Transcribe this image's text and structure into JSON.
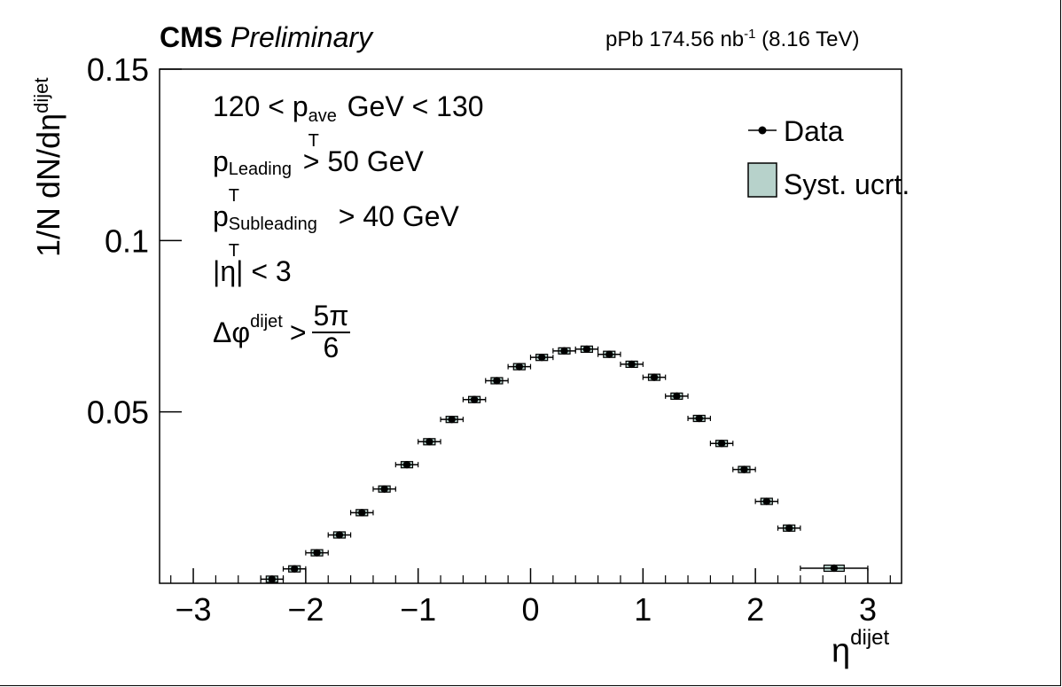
{
  "header": {
    "cms_bold": "CMS",
    "cms_italic": "Preliminary",
    "lumi_prefix": "pPb 174.56 nb",
    "lumi_exp": "-1",
    "lumi_suffix": "(8.16 TeV)"
  },
  "annotations": {
    "line1": {
      "pre": "120 < p",
      "sup": "ave",
      "sub": "T",
      "post": "GeV < 130"
    },
    "line2": {
      "pre": "p",
      "sup": "Leading",
      "sub": "T",
      "post": "> 50 GeV"
    },
    "line3": {
      "pre": "p",
      "sup": "Subleading",
      "sub": "T",
      "post": "> 40 GeV"
    },
    "line4": "|η| < 3",
    "line5": {
      "pre": "Δφ",
      "sup": "dijet",
      "post": ">",
      "num": "5π",
      "den": "6"
    }
  },
  "legend": {
    "data_label": "Data",
    "syst_label": "Syst. ucrt."
  },
  "colors": {
    "syst_fill": "#b7d2cb",
    "marker": "#000000"
  },
  "chart_data": {
    "type": "scatter",
    "xlabel": {
      "base": "η",
      "sup": "dijet"
    },
    "ylabel": {
      "base": "1/N dN/dη",
      "sup": "dijet"
    },
    "xlim": [
      -3.3,
      3.3
    ],
    "ylim": [
      0,
      0.15
    ],
    "x_ticks": [
      -3,
      -2,
      -1,
      0,
      1,
      2,
      3
    ],
    "x_tick_labels": [
      "−3",
      "−2",
      "−1",
      "0",
      "1",
      "2",
      "3"
    ],
    "y_ticks": [
      0.05,
      0.1,
      0.15
    ],
    "y_tick_labels": [
      "0.05",
      "0.1",
      "0.15"
    ],
    "grid": false,
    "legend_position": "top-right",
    "series": [
      {
        "name": "Data",
        "points": [
          {
            "x": -2.3,
            "y": 0.0012,
            "xerr": 0.1,
            "yerr": 0.0004
          },
          {
            "x": -2.1,
            "y": 0.0042,
            "xerr": 0.1,
            "yerr": 0.0005
          },
          {
            "x": -1.9,
            "y": 0.0089,
            "xerr": 0.1,
            "yerr": 0.0006
          },
          {
            "x": -1.7,
            "y": 0.0141,
            "xerr": 0.1,
            "yerr": 0.0007
          },
          {
            "x": -1.5,
            "y": 0.0206,
            "xerr": 0.1,
            "yerr": 0.0007
          },
          {
            "x": -1.3,
            "y": 0.0275,
            "xerr": 0.1,
            "yerr": 0.0008
          },
          {
            "x": -1.1,
            "y": 0.0346,
            "xerr": 0.1,
            "yerr": 0.0008
          },
          {
            "x": -0.9,
            "y": 0.0413,
            "xerr": 0.1,
            "yerr": 0.0009
          },
          {
            "x": -0.7,
            "y": 0.0478,
            "xerr": 0.1,
            "yerr": 0.0009
          },
          {
            "x": -0.5,
            "y": 0.0536,
            "xerr": 0.1,
            "yerr": 0.0009
          },
          {
            "x": -0.3,
            "y": 0.0591,
            "xerr": 0.1,
            "yerr": 0.0009
          },
          {
            "x": -0.1,
            "y": 0.0632,
            "xerr": 0.1,
            "yerr": 0.0009
          },
          {
            "x": 0.1,
            "y": 0.0659,
            "xerr": 0.1,
            "yerr": 0.0009
          },
          {
            "x": 0.3,
            "y": 0.0678,
            "xerr": 0.1,
            "yerr": 0.0009
          },
          {
            "x": 0.5,
            "y": 0.0683,
            "xerr": 0.1,
            "yerr": 0.0009
          },
          {
            "x": 0.7,
            "y": 0.0668,
            "xerr": 0.1,
            "yerr": 0.0009
          },
          {
            "x": 0.9,
            "y": 0.0639,
            "xerr": 0.1,
            "yerr": 0.0009
          },
          {
            "x": 1.1,
            "y": 0.0601,
            "xerr": 0.1,
            "yerr": 0.0009
          },
          {
            "x": 1.3,
            "y": 0.0546,
            "xerr": 0.1,
            "yerr": 0.0009
          },
          {
            "x": 1.5,
            "y": 0.0481,
            "xerr": 0.1,
            "yerr": 0.0009
          },
          {
            "x": 1.7,
            "y": 0.0408,
            "xerr": 0.1,
            "yerr": 0.0008
          },
          {
            "x": 1.9,
            "y": 0.0332,
            "xerr": 0.1,
            "yerr": 0.0008
          },
          {
            "x": 2.1,
            "y": 0.0239,
            "xerr": 0.1,
            "yerr": 0.0007
          },
          {
            "x": 2.3,
            "y": 0.0161,
            "xerr": 0.1,
            "yerr": 0.0006
          },
          {
            "x": 2.7,
            "y": 0.0044,
            "xerr": 0.3,
            "yerr": 0.0004
          }
        ]
      }
    ]
  }
}
